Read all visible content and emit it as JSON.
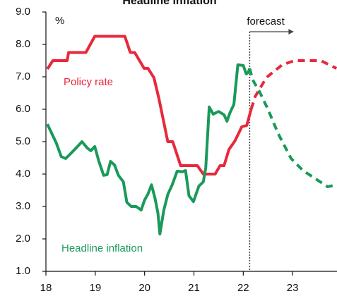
{
  "chart_data": {
    "type": "line",
    "title": "Headline inflation",
    "y_label": "%",
    "annotation": "forecast",
    "forecast_x": 22.13,
    "xlim": [
      18,
      23.9
    ],
    "xticks": [
      18,
      19,
      20,
      21,
      22,
      23
    ],
    "ylim": [
      1,
      9
    ],
    "yticks": [
      {
        "value": 1,
        "label": "1.0"
      },
      {
        "value": 2,
        "label": "2.0"
      },
      {
        "value": 3,
        "label": "3.0"
      },
      {
        "value": 4,
        "label": "4.0"
      },
      {
        "value": 5,
        "label": "5.0"
      },
      {
        "value": 6,
        "label": "6.0"
      },
      {
        "value": 7,
        "label": "7.0"
      },
      {
        "value": 8,
        "label": "8.0"
      },
      {
        "value": 9,
        "label": "9.0"
      }
    ],
    "series": [
      {
        "name": "Policy rate",
        "color": "#e8283c",
        "x": [
          18.03,
          18.14,
          18.43,
          18.46,
          18.81,
          18.99,
          19.6,
          19.71,
          19.8,
          19.99,
          20.07,
          20.19,
          20.29,
          20.47,
          20.57,
          20.67,
          20.73,
          21.07,
          21.19,
          21.43,
          21.53,
          21.61,
          21.71,
          21.83,
          21.97,
          22.07,
          22.16,
          22.24,
          22.47,
          22.79,
          23.04,
          23.36,
          23.57,
          23.89
        ],
        "values": [
          7.24,
          7.5,
          7.5,
          7.75,
          7.75,
          8.25,
          8.25,
          7.75,
          7.75,
          7.26,
          7.26,
          6.97,
          6.33,
          5.0,
          5.0,
          4.54,
          4.26,
          4.26,
          4.0,
          4.0,
          4.26,
          4.26,
          4.76,
          5.02,
          5.46,
          5.5,
          6.0,
          6.39,
          6.98,
          7.37,
          7.5,
          7.5,
          7.5,
          7.26
        ]
      },
      {
        "name": "Headline inflation",
        "color": "#1a9a5a",
        "x": [
          18.03,
          18.11,
          18.21,
          18.31,
          18.4,
          18.5,
          18.61,
          18.73,
          18.84,
          18.91,
          18.99,
          19.07,
          19.17,
          19.24,
          19.31,
          19.39,
          19.47,
          19.57,
          19.64,
          19.73,
          19.83,
          19.93,
          20.0,
          20.07,
          20.14,
          20.21,
          20.27,
          20.31,
          20.39,
          20.47,
          20.56,
          20.66,
          20.76,
          20.83,
          20.9,
          20.99,
          21.1,
          21.19,
          21.24,
          21.31,
          21.39,
          21.5,
          21.61,
          21.67,
          21.73,
          21.81,
          21.89,
          22.0,
          22.06,
          22.1,
          22.13,
          22.19,
          22.33,
          22.5,
          22.71,
          22.97,
          23.21,
          23.47,
          23.71,
          23.89
        ],
        "values": [
          5.54,
          5.28,
          4.96,
          4.54,
          4.48,
          4.63,
          4.8,
          5.0,
          4.8,
          4.72,
          4.85,
          4.41,
          3.96,
          3.98,
          4.39,
          4.28,
          3.96,
          3.76,
          3.13,
          3.0,
          3.0,
          2.89,
          3.2,
          3.39,
          3.67,
          3.26,
          2.8,
          2.15,
          2.89,
          3.37,
          3.67,
          4.09,
          4.07,
          4.11,
          3.33,
          3.15,
          3.63,
          3.76,
          4.2,
          6.07,
          5.85,
          5.93,
          5.83,
          5.63,
          5.89,
          6.15,
          7.37,
          7.35,
          7.09,
          7.13,
          7.26,
          6.91,
          6.54,
          6.0,
          5.24,
          4.48,
          4.11,
          3.85,
          3.61,
          3.67
        ]
      }
    ]
  }
}
